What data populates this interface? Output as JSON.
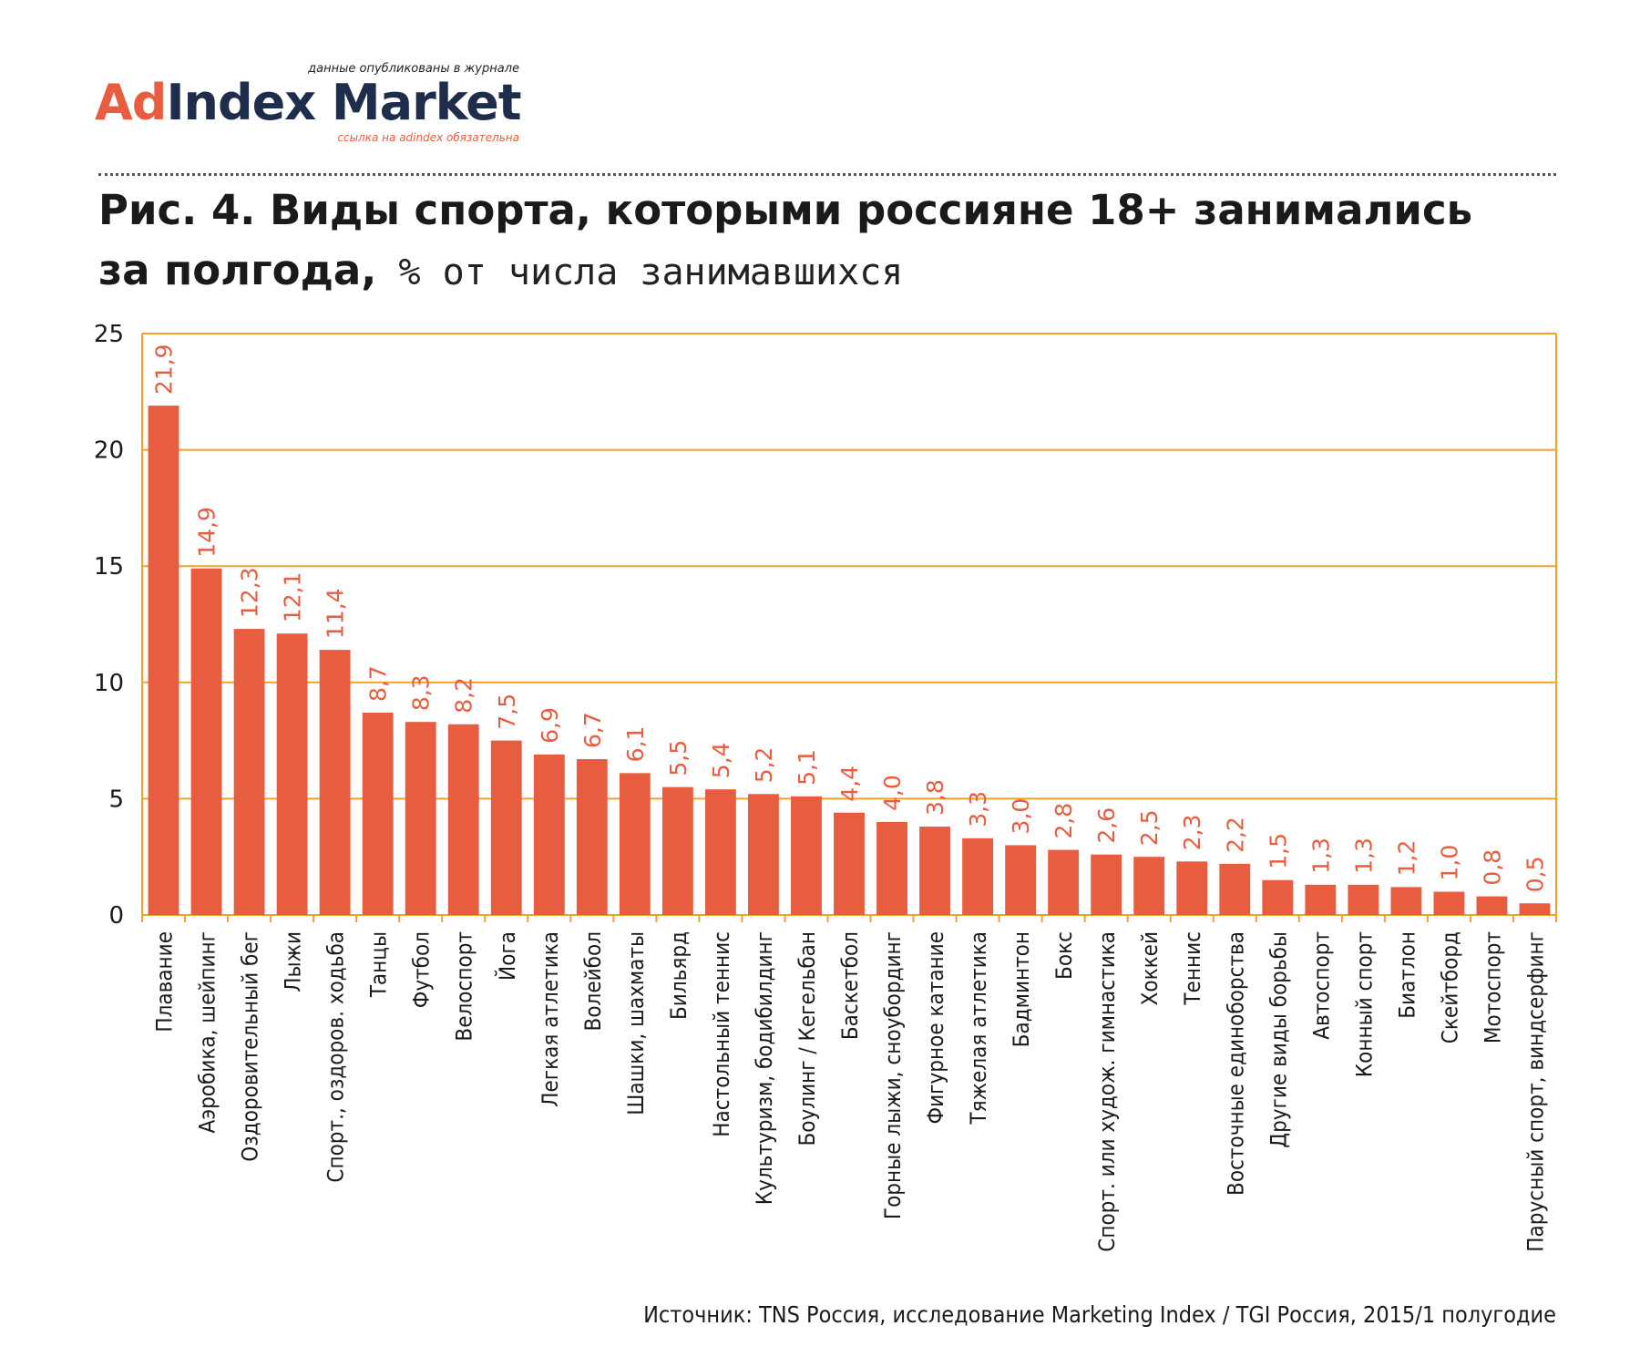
{
  "logo": {
    "tagline_top": "данные опубликованы в журнале",
    "brand_part1": "Ad",
    "brand_part2": "Index Market",
    "tagline_bottom": "ссылка на adindex обязательна"
  },
  "title": {
    "line1": "Рис. 4. Виды спорта, которыми россияне 18+ занимались",
    "line2": "за полгода,",
    "unit": " % от числа занимавшихся"
  },
  "source": "Источник: TNS Россия, исследование Marketing Index / TGI Россия, 2015/1 полугодие",
  "colors": {
    "bar": "#e85d3f",
    "label": "#e85d3f",
    "grid": "#f2a12a",
    "axis_text": "#1a1a1a"
  },
  "chart_data": {
    "type": "bar",
    "title": "",
    "xlabel": "",
    "ylabel": "",
    "ylim": [
      0,
      25
    ],
    "yticks": [
      0,
      5,
      10,
      15,
      20,
      25
    ],
    "grid": true,
    "categories": [
      "Плавание",
      "Аэробика, шейпинг",
      "Оздоровительный бег",
      "Лыжи",
      "Спорт., оздоров. ходьба",
      "Танцы",
      "Футбол",
      "Велоспорт",
      "Йога",
      "Легкая атлетика",
      "Волейбол",
      "Шашки, шахматы",
      "Бильярд",
      "Настольный теннис",
      "Культуризм, бодибилдинг",
      "Боулинг / Кегельбан",
      "Баскетбол",
      "Горные лыжи, сноубординг",
      "Фигурное катание",
      "Тяжелая атлетика",
      "Бадминтон",
      "Бокс",
      "Спорт. или худож. гимнастика",
      "Хоккей",
      "Теннис",
      "Восточные единоборства",
      "Другие виды борьбы",
      "Автоспорт",
      "Конный спорт",
      "Биатлон",
      "Скейтборд",
      "Мотоспорт",
      "Парусный спорт, виндсерфинг"
    ],
    "values": [
      21.9,
      14.9,
      12.3,
      12.1,
      11.4,
      8.7,
      8.3,
      8.2,
      7.5,
      6.9,
      6.7,
      6.1,
      5.5,
      5.4,
      5.2,
      5.1,
      4.4,
      4.0,
      3.8,
      3.3,
      3.0,
      2.8,
      2.6,
      2.5,
      2.3,
      2.2,
      1.5,
      1.3,
      1.3,
      1.2,
      1.0,
      0.8,
      0.5
    ],
    "value_labels": [
      "21,9",
      "14,9",
      "12,3",
      "12,1",
      "11,4",
      "8,7",
      "8,3",
      "8,2",
      "7,5",
      "6,9",
      "6,7",
      "6,1",
      "5,5",
      "5,4",
      "5,2",
      "5,1",
      "4,4",
      "4,0",
      "3,8",
      "3,3",
      "3,0",
      "2,8",
      "2,6",
      "2,5",
      "2,3",
      "2,2",
      "1,5",
      "1,3",
      "1,3",
      "1,2",
      "1,0",
      "0,8",
      "0,5"
    ]
  }
}
